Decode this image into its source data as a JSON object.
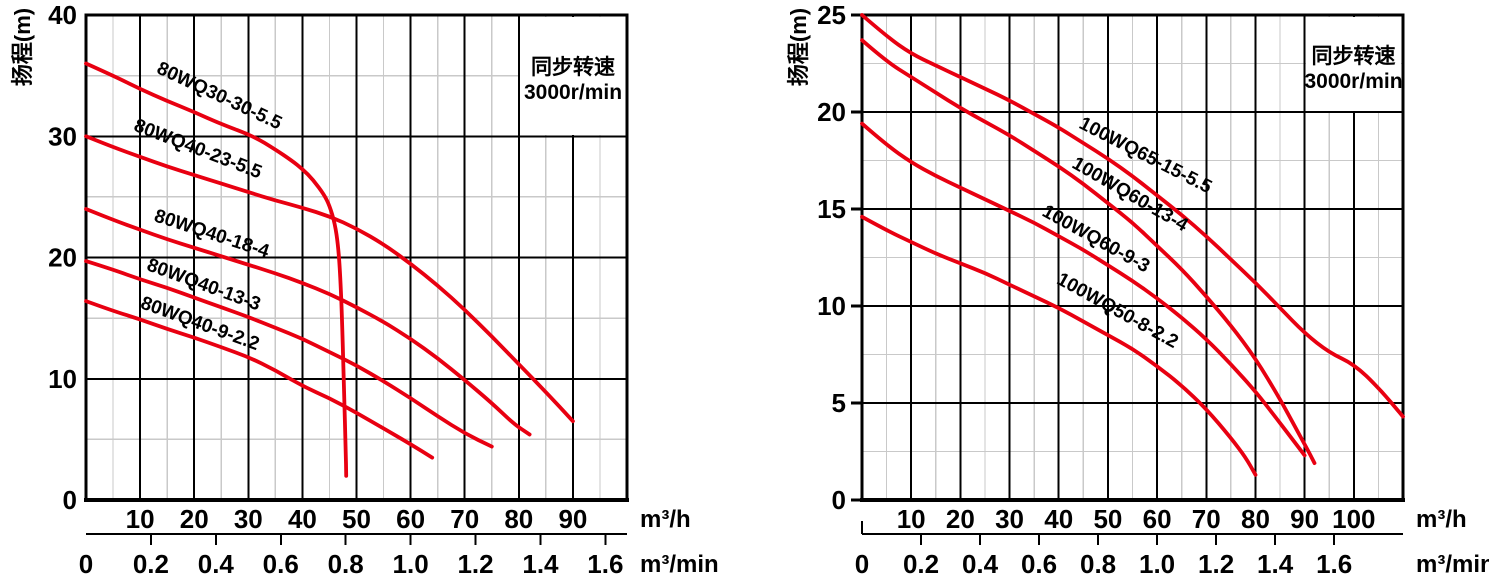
{
  "colors": {
    "curve_red": "#e80011",
    "annotation_blue": "#1571a5",
    "grid_major": "#000000",
    "grid_minor": "#c9c9c9",
    "background": "#ffffff",
    "text": "#000000"
  },
  "chart_data": [
    {
      "type": "line",
      "id": "left",
      "title": "",
      "ylabel": "扬程(m)",
      "y_axis": {
        "range": [
          0,
          40
        ],
        "major_step": 10,
        "minor_step": 5,
        "ticks": [
          0,
          10,
          20,
          30,
          40
        ]
      },
      "x_axis_primary": {
        "label": "m³/h",
        "range": [
          0,
          100
        ],
        "major_step": 10,
        "minor_step": 5,
        "ticks": [
          10,
          20,
          30,
          40,
          50,
          60,
          70,
          80,
          90
        ]
      },
      "x_axis_secondary": {
        "label": "m³/min",
        "ticks": [
          0,
          0.2,
          0.4,
          0.6,
          0.8,
          1.0,
          1.2,
          1.4,
          1.6
        ],
        "hours_per_unit": 60
      },
      "annotation": {
        "line1": "同步转速",
        "line2": "3000r/min"
      },
      "grid": true,
      "legend_position": "top-right",
      "series": [
        {
          "name": "80WQ30-30-5.5",
          "label": {
            "x": 24.2,
            "y": 32.9,
            "angle": 25
          },
          "points": [
            [
              0,
              36
            ],
            [
              5,
              35
            ],
            [
              10,
              33.9
            ],
            [
              15,
              32.9
            ],
            [
              20,
              32
            ],
            [
              25,
              31
            ],
            [
              31,
              30
            ],
            [
              35,
              28.9
            ],
            [
              38,
              28
            ],
            [
              40,
              27.3
            ],
            [
              42,
              26.4
            ],
            [
              44,
              25.2
            ],
            [
              45,
              24.3
            ],
            [
              46,
              22.8
            ],
            [
              46.6,
              21
            ],
            [
              47,
              18.5
            ],
            [
              47.4,
              14
            ],
            [
              47.7,
              9
            ],
            [
              48,
              4
            ],
            [
              48.1,
              2
            ]
          ]
        },
        {
          "name": "80WQ40-23-5.5",
          "label": {
            "x": 20.3,
            "y": 28.5,
            "angle": 21
          },
          "points": [
            [
              0,
              30
            ],
            [
              5,
              29.1
            ],
            [
              10,
              28.3
            ],
            [
              15,
              27.5
            ],
            [
              20,
              26.8
            ],
            [
              25,
              26.1
            ],
            [
              30,
              25.4
            ],
            [
              35,
              24.7
            ],
            [
              40,
              24.1
            ],
            [
              45,
              23.4
            ],
            [
              50,
              22.4
            ],
            [
              55,
              21.1
            ],
            [
              60,
              19.5
            ],
            [
              65,
              17.7
            ],
            [
              70,
              15.7
            ],
            [
              75,
              13.5
            ],
            [
              80,
              11.2
            ],
            [
              85,
              8.9
            ],
            [
              90,
              6.5
            ]
          ]
        },
        {
          "name": "80WQ40-18-4",
          "label": {
            "x": 22.9,
            "y": 21.5,
            "angle": 18
          },
          "points": [
            [
              0,
              24
            ],
            [
              5,
              23.1
            ],
            [
              10,
              22.3
            ],
            [
              15,
              21.5
            ],
            [
              20,
              20.8
            ],
            [
              25,
              20.1
            ],
            [
              30,
              19.4
            ],
            [
              35,
              18.7
            ],
            [
              40,
              17.9
            ],
            [
              45,
              17
            ],
            [
              50,
              15.9
            ],
            [
              55,
              14.7
            ],
            [
              60,
              13.3
            ],
            [
              65,
              11.7
            ],
            [
              70,
              9.9
            ],
            [
              75,
              8
            ],
            [
              79,
              6.3
            ],
            [
              82,
              5.4
            ]
          ]
        },
        {
          "name": "80WQ40-13-3",
          "label": {
            "x": 21.4,
            "y": 17.3,
            "angle": 20
          },
          "points": [
            [
              0,
              19.7
            ],
            [
              5,
              19
            ],
            [
              10,
              18.2
            ],
            [
              15,
              17.5
            ],
            [
              20,
              16.7
            ],
            [
              25,
              15.9
            ],
            [
              30,
              15.1
            ],
            [
              35,
              14.2
            ],
            [
              40,
              13.3
            ],
            [
              45,
              12.2
            ],
            [
              50,
              11.1
            ],
            [
              55,
              9.8
            ],
            [
              60,
              8.4
            ],
            [
              65,
              6.9
            ],
            [
              70,
              5.5
            ],
            [
              75,
              4.4
            ]
          ]
        },
        {
          "name": "80WQ40-9-2.2",
          "label": {
            "x": 20.7,
            "y": 14.1,
            "angle": 20
          },
          "points": [
            [
              0,
              16.4
            ],
            [
              5,
              15.6
            ],
            [
              10,
              14.9
            ],
            [
              15,
              14.1
            ],
            [
              20,
              13.4
            ],
            [
              25,
              12.6
            ],
            [
              30,
              11.8
            ],
            [
              35,
              10.7
            ],
            [
              40,
              9.4
            ],
            [
              45,
              8.4
            ],
            [
              50,
              7.2
            ],
            [
              55,
              5.9
            ],
            [
              60,
              4.6
            ],
            [
              64,
              3.5
            ]
          ]
        }
      ]
    },
    {
      "type": "line",
      "id": "right",
      "title": "",
      "ylabel": "扬程(m)",
      "y_axis": {
        "range": [
          0,
          25
        ],
        "major_step": 5,
        "minor_step": 2.5,
        "ticks": [
          0,
          5,
          10,
          15,
          20,
          25
        ]
      },
      "x_axis_primary": {
        "label": "m³/h",
        "range": [
          0,
          110
        ],
        "major_step": 10,
        "minor_step": 5,
        "ticks": [
          10,
          20,
          30,
          40,
          50,
          60,
          70,
          80,
          90,
          100
        ]
      },
      "x_axis_secondary": {
        "label": "m³/min",
        "ticks": [
          0,
          0.2,
          0.4,
          0.6,
          0.8,
          1.0,
          1.2,
          1.4,
          1.6
        ],
        "hours_per_unit": 60
      },
      "annotation": {
        "line1": "同步转速",
        "line2": "3000r/min"
      },
      "grid": true,
      "legend_position": "top-right",
      "series": [
        {
          "name": "100WQ65-15-5.5",
          "label": {
            "x": 57.1,
            "y": 17.5,
            "angle": 27
          },
          "points": [
            [
              0,
              25
            ],
            [
              5,
              23.9
            ],
            [
              10,
              23
            ],
            [
              15,
              22.4
            ],
            [
              20,
              21.8
            ],
            [
              25,
              21.2
            ],
            [
              30,
              20.6
            ],
            [
              35,
              19.9
            ],
            [
              40,
              19.2
            ],
            [
              45,
              18.4
            ],
            [
              50,
              17.6
            ],
            [
              55,
              16.7
            ],
            [
              60,
              15.7
            ],
            [
              65,
              14.7
            ],
            [
              70,
              13.6
            ],
            [
              75,
              12.4
            ],
            [
              80,
              11.2
            ],
            [
              85,
              9.9
            ],
            [
              90,
              8.6
            ],
            [
              95,
              7.6
            ],
            [
              100,
              7
            ],
            [
              105,
              5.8
            ],
            [
              110,
              4.3
            ]
          ]
        },
        {
          "name": "100WQ60-13-4",
          "label": {
            "x": 53.9,
            "y": 15.5,
            "angle": 30
          },
          "points": [
            [
              0,
              23.7
            ],
            [
              5,
              22.6
            ],
            [
              10,
              21.8
            ],
            [
              15,
              21
            ],
            [
              20,
              20.2
            ],
            [
              25,
              19.5
            ],
            [
              30,
              18.8
            ],
            [
              35,
              18
            ],
            [
              40,
              17.2
            ],
            [
              45,
              16.3
            ],
            [
              50,
              15.3
            ],
            [
              55,
              14.3
            ],
            [
              60,
              13.1
            ],
            [
              65,
              11.9
            ],
            [
              70,
              10.5
            ],
            [
              75,
              9
            ],
            [
              80,
              7.3
            ],
            [
              85,
              5.2
            ],
            [
              88,
              3.8
            ],
            [
              91,
              2.4
            ],
            [
              92,
              1.9
            ]
          ]
        },
        {
          "name": "100WQ60-9-3",
          "label": {
            "x": 47,
            "y": 13.2,
            "angle": 29
          },
          "points": [
            [
              0,
              19.4
            ],
            [
              5,
              18.3
            ],
            [
              10,
              17.4
            ],
            [
              15,
              16.7
            ],
            [
              20,
              16.1
            ],
            [
              25,
              15.5
            ],
            [
              30,
              14.9
            ],
            [
              35,
              14.3
            ],
            [
              40,
              13.6
            ],
            [
              45,
              12.9
            ],
            [
              50,
              12.1
            ],
            [
              55,
              11.3
            ],
            [
              60,
              10.4
            ],
            [
              65,
              9.4
            ],
            [
              70,
              8.3
            ],
            [
              75,
              7
            ],
            [
              80,
              5.6
            ],
            [
              84,
              4.3
            ],
            [
              87,
              3.3
            ],
            [
              90,
              2.3
            ]
          ]
        },
        {
          "name": "100WQ50-8-2.2",
          "label": {
            "x": 51.4,
            "y": 9.5,
            "angle": 29
          },
          "points": [
            [
              0,
              14.6
            ],
            [
              5,
              13.9
            ],
            [
              10,
              13.3
            ],
            [
              15,
              12.7
            ],
            [
              20,
              12.2
            ],
            [
              25,
              11.7
            ],
            [
              30,
              11.1
            ],
            [
              35,
              10.5
            ],
            [
              40,
              9.9
            ],
            [
              45,
              9.2
            ],
            [
              50,
              8.5
            ],
            [
              55,
              7.8
            ],
            [
              60,
              6.9
            ],
            [
              65,
              5.9
            ],
            [
              70,
              4.7
            ],
            [
              75,
              3.2
            ],
            [
              78,
              2.2
            ],
            [
              80,
              1.3
            ]
          ]
        }
      ]
    }
  ]
}
